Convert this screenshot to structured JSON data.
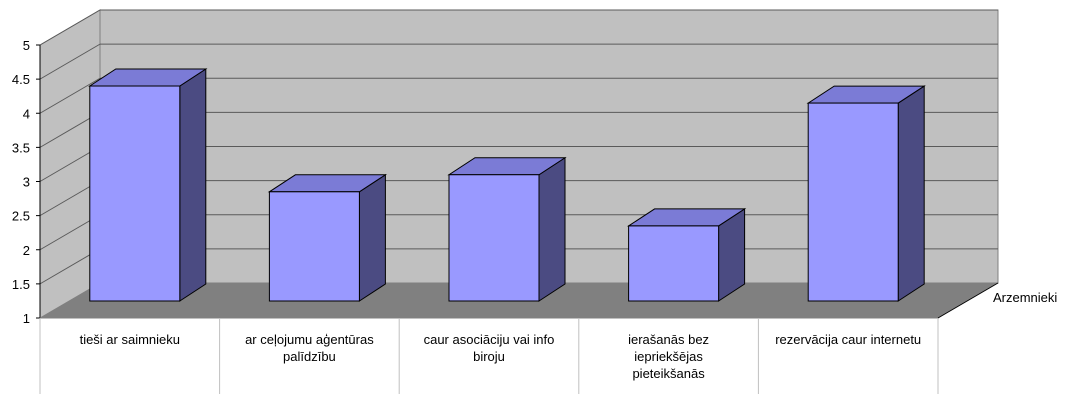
{
  "chart_data": {
    "type": "bar",
    "three_d": true,
    "title": "",
    "xlabel": "",
    "ylabel": "",
    "categories": [
      [
        "tieši ar saimnieku"
      ],
      [
        "ar ceļojumu aģentūras",
        "palīdzību"
      ],
      [
        "caur asociāciju vai info",
        "biroju"
      ],
      [
        "ierašanās bez",
        "iepriekšējas",
        "pieteikšanās"
      ],
      [
        "rezervācija caur internetu"
      ]
    ],
    "series": [
      {
        "name": "Arzemnieki",
        "values": [
          4.15,
          2.6,
          2.85,
          2.1,
          3.9
        ],
        "color": "#9999ff",
        "top_color": "#7b7bd6",
        "side_color": "#4b4b82"
      }
    ],
    "ylim": [
      1,
      5
    ],
    "yticks": [
      "1",
      "1.5",
      "2",
      "2.5",
      "3",
      "3.5",
      "4",
      "4.5",
      "5"
    ],
    "grid": true,
    "legend": "none",
    "colors": {
      "back_wall": "#c0c0c0",
      "floor": "#808080",
      "gridline": "#5a5a5a"
    }
  }
}
